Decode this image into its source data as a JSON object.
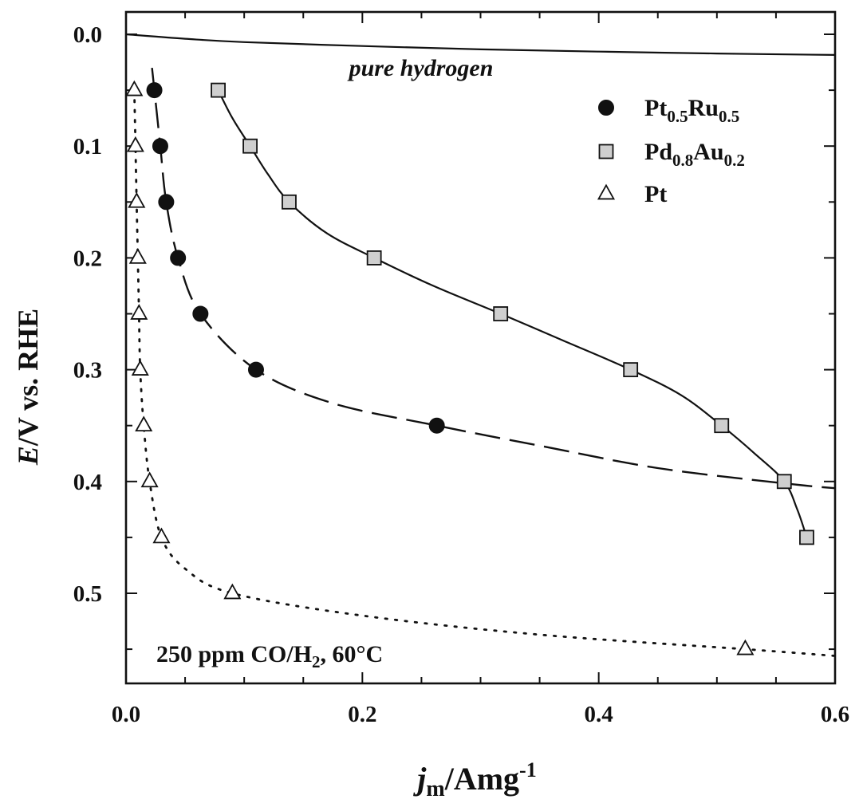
{
  "chart_data": {
    "type": "line",
    "xlim": [
      0.0,
      0.6
    ],
    "ylim": [
      0.0,
      0.575
    ],
    "y_axis_inverted": true,
    "x_ticks": [
      "0.0",
      "0.2",
      "0.4",
      "0.6"
    ],
    "y_ticks": [
      "0.0",
      "0.1",
      "0.2",
      "0.3",
      "0.4",
      "0.5"
    ],
    "xlabel": {
      "main": "j",
      "sub": "m",
      "rest": "/Amg",
      "sup": "-1"
    },
    "ylabel": {
      "italic": "E",
      "rest": "/V vs. RHE"
    },
    "annotations": {
      "curve_label": "pure hydrogen",
      "conditions_prefix": "250 ppm CO/H",
      "conditions_sub": "2",
      "conditions_suffix": ", 60°C"
    },
    "legend_placement": "top-right",
    "legend": [
      {
        "marker": "filled-circle",
        "parts": [
          {
            "t": "Pt",
            "s": false
          },
          {
            "t": "0.5",
            "s": true
          },
          {
            "t": "Ru",
            "s": false
          },
          {
            "t": "0.5",
            "s": true
          }
        ]
      },
      {
        "marker": "gray-square",
        "parts": [
          {
            "t": "Pd",
            "s": false
          },
          {
            "t": "0.8",
            "s": true
          },
          {
            "t": "Au",
            "s": false
          },
          {
            "t": "0.2",
            "s": true
          }
        ]
      },
      {
        "marker": "open-triangle",
        "parts": [
          {
            "t": "Pt",
            "s": false
          }
        ]
      }
    ],
    "series": [
      {
        "name": "Pt0.5Ru0.5",
        "marker": "filled-circle",
        "line": "dashed",
        "points": [
          [
            0.024,
            0.05
          ],
          [
            0.029,
            0.1
          ],
          [
            0.034,
            0.15
          ],
          [
            0.044,
            0.2
          ],
          [
            0.063,
            0.25
          ],
          [
            0.11,
            0.3
          ],
          [
            0.263,
            0.35
          ]
        ],
        "fit": [
          [
            0.022,
            0.03
          ],
          [
            0.024,
            0.05
          ],
          [
            0.029,
            0.1
          ],
          [
            0.034,
            0.15
          ],
          [
            0.044,
            0.2
          ],
          [
            0.063,
            0.25
          ],
          [
            0.11,
            0.3
          ],
          [
            0.175,
            0.33
          ],
          [
            0.263,
            0.35
          ],
          [
            0.35,
            0.368
          ],
          [
            0.45,
            0.388
          ],
          [
            0.56,
            0.402
          ],
          [
            0.6,
            0.406
          ]
        ]
      },
      {
        "name": "Pd0.8Au0.2",
        "marker": "gray-square",
        "line": "solid",
        "points": [
          [
            0.078,
            0.05
          ],
          [
            0.105,
            0.1
          ],
          [
            0.138,
            0.15
          ],
          [
            0.21,
            0.2
          ],
          [
            0.317,
            0.25
          ],
          [
            0.427,
            0.3
          ],
          [
            0.504,
            0.35
          ],
          [
            0.557,
            0.4
          ],
          [
            0.576,
            0.45
          ]
        ],
        "fit": [
          [
            0.078,
            0.05
          ],
          [
            0.09,
            0.075
          ],
          [
            0.105,
            0.1
          ],
          [
            0.12,
            0.125
          ],
          [
            0.138,
            0.15
          ],
          [
            0.17,
            0.178
          ],
          [
            0.21,
            0.2
          ],
          [
            0.26,
            0.225
          ],
          [
            0.317,
            0.25
          ],
          [
            0.37,
            0.274
          ],
          [
            0.427,
            0.3
          ],
          [
            0.47,
            0.323
          ],
          [
            0.504,
            0.35
          ],
          [
            0.532,
            0.375
          ],
          [
            0.557,
            0.4
          ],
          [
            0.568,
            0.425
          ],
          [
            0.576,
            0.45
          ]
        ]
      },
      {
        "name": "Pt",
        "marker": "open-triangle",
        "line": "dotted",
        "points": [
          [
            0.007,
            0.05
          ],
          [
            0.008,
            0.1
          ],
          [
            0.009,
            0.15
          ],
          [
            0.01,
            0.2
          ],
          [
            0.011,
            0.25
          ],
          [
            0.012,
            0.3
          ],
          [
            0.015,
            0.35
          ],
          [
            0.02,
            0.4
          ],
          [
            0.03,
            0.45
          ],
          [
            0.09,
            0.5
          ],
          [
            0.524,
            0.55
          ]
        ],
        "fit": [
          [
            0.007,
            0.05
          ],
          [
            0.008,
            0.1
          ],
          [
            0.009,
            0.15
          ],
          [
            0.01,
            0.2
          ],
          [
            0.011,
            0.25
          ],
          [
            0.012,
            0.3
          ],
          [
            0.015,
            0.35
          ],
          [
            0.02,
            0.4
          ],
          [
            0.03,
            0.45
          ],
          [
            0.05,
            0.478
          ],
          [
            0.09,
            0.5
          ],
          [
            0.2,
            0.52
          ],
          [
            0.35,
            0.537
          ],
          [
            0.524,
            0.55
          ],
          [
            0.6,
            0.556
          ]
        ]
      },
      {
        "name": "pure hydrogen",
        "marker": "none",
        "line": "solid",
        "points": [],
        "fit": [
          [
            0.0,
            0.0
          ],
          [
            0.05,
            0.004
          ],
          [
            0.1,
            0.007
          ],
          [
            0.2,
            0.0105
          ],
          [
            0.3,
            0.0135
          ],
          [
            0.4,
            0.0155
          ],
          [
            0.5,
            0.0172
          ],
          [
            0.6,
            0.0185
          ]
        ]
      }
    ]
  }
}
